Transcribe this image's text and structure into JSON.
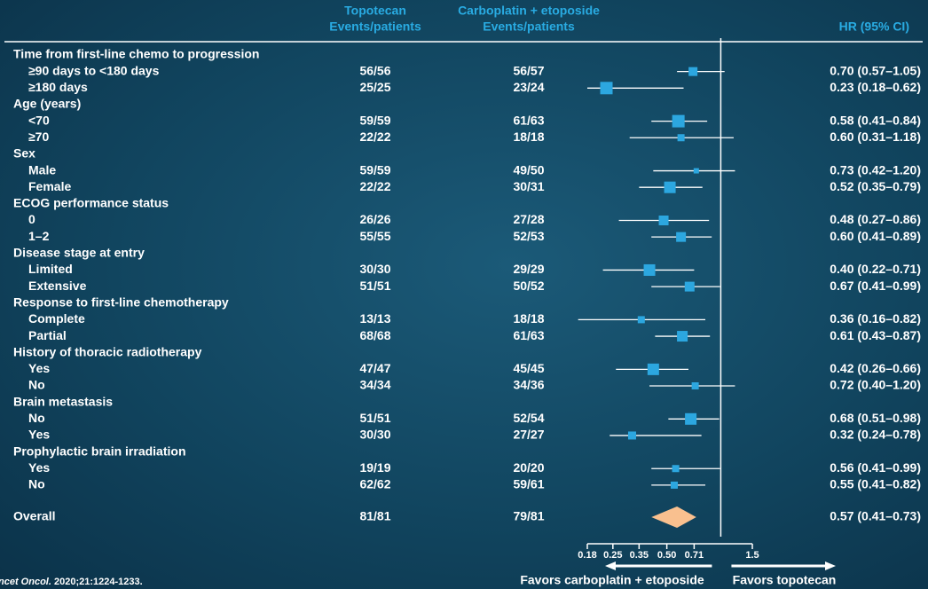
{
  "chart_data": {
    "type": "forest",
    "columns": {
      "group1": "Topotecan",
      "sub1": "Events/patients",
      "group2": "Carboplatin + etoposide",
      "sub2": "Events/patients",
      "hr": "HR (95% CI)"
    },
    "rows": [
      {
        "label": "Time from first-line chemo to progression"
      },
      {
        "label": "≥90 days to <180 days",
        "topotecan": "56/56",
        "carboplatin": "56/57",
        "hr": 0.7,
        "lower": 0.57,
        "upper": 1.05,
        "ci_label": "0.70 (0.57–1.05)",
        "weight": 10
      },
      {
        "label": "≥180 days",
        "topotecan": "25/25",
        "carboplatin": "23/24",
        "hr": 0.23,
        "lower": 0.18,
        "upper": 0.62,
        "ci_label": "0.23 (0.18–0.62)",
        "weight": 14
      },
      {
        "label": "Age (years)"
      },
      {
        "label": "<70",
        "topotecan": "59/59",
        "carboplatin": "61/63",
        "hr": 0.58,
        "lower": 0.41,
        "upper": 0.84,
        "ci_label": "0.58 (0.41–0.84)",
        "weight": 14
      },
      {
        "label": "≥70",
        "topotecan": "22/22",
        "carboplatin": "18/18",
        "hr": 0.6,
        "lower": 0.31,
        "upper": 1.18,
        "ci_label": "0.60 (0.31–1.18)",
        "weight": 8
      },
      {
        "label": "Sex"
      },
      {
        "label": "Male",
        "topotecan": "59/59",
        "carboplatin": "49/50",
        "hr": 0.73,
        "lower": 0.42,
        "upper": 1.2,
        "ci_label": "0.73 (0.42–1.20)",
        "weight": 6
      },
      {
        "label": "Female",
        "topotecan": "22/22",
        "carboplatin": "30/31",
        "hr": 0.52,
        "lower": 0.35,
        "upper": 0.79,
        "ci_label": "0.52 (0.35–0.79)",
        "weight": 13
      },
      {
        "label": "ECOG performance status"
      },
      {
        "label": "0",
        "topotecan": "26/26",
        "carboplatin": "27/28",
        "hr": 0.48,
        "lower": 0.27,
        "upper": 0.86,
        "ci_label": "0.48 (0.27–0.86)",
        "weight": 11
      },
      {
        "label": "1–2",
        "topotecan": "55/55",
        "carboplatin": "52/53",
        "hr": 0.6,
        "lower": 0.41,
        "upper": 0.89,
        "ci_label": "0.60 (0.41–0.89)",
        "weight": 11
      },
      {
        "label": "Disease stage at entry"
      },
      {
        "label": "Limited",
        "topotecan": "30/30",
        "carboplatin": "29/29",
        "hr": 0.4,
        "lower": 0.22,
        "upper": 0.71,
        "ci_label": "0.40 (0.22–0.71)",
        "weight": 13
      },
      {
        "label": "Extensive",
        "topotecan": "51/51",
        "carboplatin": "50/52",
        "hr": 0.67,
        "lower": 0.41,
        "upper": 0.99,
        "ci_label": "0.67 (0.41–0.99)",
        "weight": 11
      },
      {
        "label": "Response to first-line chemotherapy"
      },
      {
        "label": "Complete",
        "topotecan": "13/13",
        "carboplatin": "18/18",
        "hr": 0.36,
        "lower": 0.16,
        "upper": 0.82,
        "ci_label": "0.36 (0.16–0.82)",
        "weight": 8
      },
      {
        "label": "Partial",
        "topotecan": "68/68",
        "carboplatin": "61/63",
        "hr": 0.61,
        "lower": 0.43,
        "upper": 0.87,
        "ci_label": "0.61 (0.43–0.87)",
        "weight": 12
      },
      {
        "label": "History of thoracic radiotherapy"
      },
      {
        "label": "Yes",
        "topotecan": "47/47",
        "carboplatin": "45/45",
        "hr": 0.42,
        "lower": 0.26,
        "upper": 0.66,
        "ci_label": "0.42 (0.26–0.66)",
        "weight": 13
      },
      {
        "label": "No",
        "topotecan": "34/34",
        "carboplatin": "34/36",
        "hr": 0.72,
        "lower": 0.4,
        "upper": 1.2,
        "ci_label": "0.72 (0.40–1.20)",
        "weight": 8
      },
      {
        "label": "Brain metastasis"
      },
      {
        "label": "No",
        "topotecan": "51/51",
        "carboplatin": "52/54",
        "hr": 0.68,
        "lower": 0.51,
        "upper": 0.98,
        "ci_label": "0.68 (0.51–0.98)",
        "weight": 13
      },
      {
        "label": "Yes",
        "topotecan": "30/30",
        "carboplatin": "27/27",
        "hr": 0.32,
        "lower": 0.24,
        "upper": 0.78,
        "ci_label": "0.32 (0.24–0.78)",
        "weight": 9
      },
      {
        "label": "Prophylactic brain irradiation"
      },
      {
        "label": "Yes",
        "topotecan": "19/19",
        "carboplatin": "20/20",
        "hr": 0.56,
        "lower": 0.41,
        "upper": 0.99,
        "ci_label": "0.56 (0.41–0.99)",
        "weight": 8
      },
      {
        "label": "No",
        "topotecan": "62/62",
        "carboplatin": "59/61",
        "hr": 0.55,
        "lower": 0.41,
        "upper": 0.82,
        "ci_label": "0.55 (0.41–0.82)",
        "weight": 8
      }
    ],
    "overall": {
      "label": "Overall",
      "topotecan": "81/81",
      "carboplatin": "79/81",
      "hr": 0.57,
      "lower": 0.41,
      "upper": 0.73,
      "ci_label": "0.57 (0.41–0.73)"
    },
    "xscale": "log",
    "xlim": [
      0.18,
      1.5
    ],
    "xticks": [
      0.18,
      0.25,
      0.35,
      {
        "value": 0.5,
        "label": "0.50"
      },
      0.71,
      1.5
    ],
    "reference": 1,
    "favors_left": "Favors carboplatin + etoposide",
    "favors_right": "Favors topotecan",
    "marker_color": "#2ca7e0",
    "diamond_color": "#f9c08f",
    "favors_left_color": "#f7941d",
    "favors_right_color": "#29abe2"
  },
  "source": {
    "italic": "ncet Oncol.",
    "rest": "2020;21:1224-1233."
  }
}
